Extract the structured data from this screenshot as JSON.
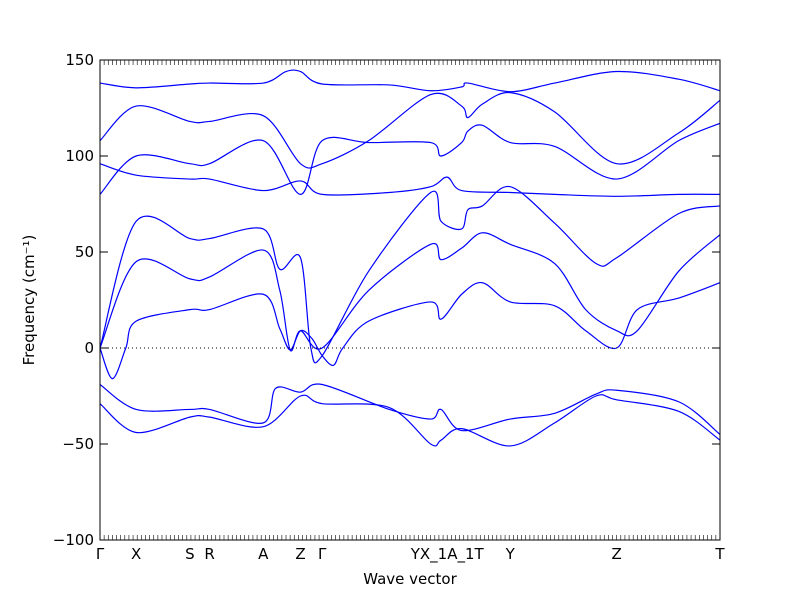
{
  "chart_data": {
    "type": "line",
    "xlabel": "Wave vector",
    "ylabel": "Frequency (cm⁻¹)",
    "ylim": [
      -100,
      150
    ],
    "yticks": [
      -100,
      -50,
      0,
      50,
      100,
      150
    ],
    "xlim": [
      0,
      3.0
    ],
    "grid": false,
    "zero_line": "dotted",
    "line_color": "#0000ff",
    "x_tick_labels": [
      {
        "label": "Γ",
        "x": 0.0
      },
      {
        "label": "X",
        "x": 0.175
      },
      {
        "label": "S",
        "x": 0.435
      },
      {
        "label": "R",
        "x": 0.53
      },
      {
        "label": "A",
        "x": 0.79
      },
      {
        "label": "Z",
        "x": 0.97
      },
      {
        "label": "Γ",
        "x": 1.075
      },
      {
        "label": "YX_1A_1T",
        "x": 1.68
      },
      {
        "label": "Y",
        "x": 1.985
      },
      {
        "label": "Z",
        "x": 2.5
      },
      {
        "label": "T",
        "x": 3.0
      }
    ],
    "series": [
      {
        "values": [
          [
            0,
            138
          ],
          [
            0.175,
            135.5
          ],
          [
            0.435,
            137.5
          ],
          [
            0.53,
            138
          ],
          [
            0.79,
            138
          ],
          [
            0.9,
            144
          ],
          [
            0.97,
            144
          ],
          [
            1.075,
            137.5
          ],
          [
            1.4,
            137
          ],
          [
            1.6,
            134
          ],
          [
            1.75,
            136
          ],
          [
            1.78,
            138
          ],
          [
            1.985,
            133.5
          ],
          [
            2.2,
            138
          ],
          [
            2.5,
            144
          ],
          [
            2.8,
            140
          ],
          [
            3.0,
            134
          ]
        ]
      },
      {
        "values": [
          [
            0,
            108
          ],
          [
            0.175,
            126
          ],
          [
            0.435,
            118
          ],
          [
            0.53,
            118
          ],
          [
            0.79,
            121
          ],
          [
            0.97,
            96
          ],
          [
            1.075,
            96
          ],
          [
            1.3,
            108
          ],
          [
            1.6,
            132
          ],
          [
            1.75,
            126
          ],
          [
            1.78,
            120
          ],
          [
            1.85,
            127
          ],
          [
            1.985,
            133
          ],
          [
            2.2,
            123
          ],
          [
            2.5,
            96
          ],
          [
            2.8,
            112
          ],
          [
            3.0,
            129
          ]
        ]
      },
      {
        "values": [
          [
            0,
            80
          ],
          [
            0.175,
            100
          ],
          [
            0.435,
            96
          ],
          [
            0.53,
            96
          ],
          [
            0.79,
            108
          ],
          [
            0.97,
            80
          ],
          [
            1.075,
            108
          ],
          [
            1.3,
            107
          ],
          [
            1.6,
            107
          ],
          [
            1.65,
            100
          ],
          [
            1.75,
            107
          ],
          [
            1.78,
            113
          ],
          [
            1.85,
            116
          ],
          [
            1.985,
            107
          ],
          [
            2.2,
            105
          ],
          [
            2.5,
            88
          ],
          [
            2.8,
            108
          ],
          [
            3.0,
            117
          ]
        ]
      },
      {
        "values": [
          [
            0,
            96
          ],
          [
            0.175,
            90
          ],
          [
            0.435,
            88
          ],
          [
            0.53,
            88
          ],
          [
            0.79,
            82
          ],
          [
            0.97,
            87
          ],
          [
            1.075,
            80
          ],
          [
            1.4,
            81
          ],
          [
            1.6,
            84
          ],
          [
            1.68,
            89
          ],
          [
            1.75,
            82
          ],
          [
            1.985,
            81
          ],
          [
            2.2,
            80
          ],
          [
            2.5,
            79
          ],
          [
            2.8,
            80
          ],
          [
            3.0,
            80
          ]
        ]
      },
      {
        "values": [
          [
            0,
            0
          ],
          [
            0.175,
            66
          ],
          [
            0.435,
            57
          ],
          [
            0.53,
            57
          ],
          [
            0.79,
            62
          ],
          [
            0.87,
            41
          ],
          [
            0.97,
            47
          ],
          [
            1.02,
            0
          ],
          [
            1.075,
            -4
          ],
          [
            1.3,
            40
          ],
          [
            1.6,
            81
          ],
          [
            1.65,
            66
          ],
          [
            1.75,
            62
          ],
          [
            1.78,
            72
          ],
          [
            1.85,
            74
          ],
          [
            1.985,
            84
          ],
          [
            2.2,
            65
          ],
          [
            2.4,
            44
          ],
          [
            2.5,
            47
          ],
          [
            2.8,
            70
          ],
          [
            3.0,
            74
          ]
        ]
      },
      {
        "values": [
          [
            0,
            0
          ],
          [
            0.175,
            45
          ],
          [
            0.435,
            36
          ],
          [
            0.53,
            37
          ],
          [
            0.79,
            51
          ],
          [
            0.87,
            30
          ],
          [
            0.92,
            -1
          ],
          [
            0.97,
            9
          ],
          [
            1.075,
            0
          ],
          [
            1.3,
            30
          ],
          [
            1.6,
            54
          ],
          [
            1.65,
            46
          ],
          [
            1.75,
            52
          ],
          [
            1.85,
            60
          ],
          [
            1.985,
            54
          ],
          [
            2.2,
            44
          ],
          [
            2.35,
            20
          ],
          [
            2.5,
            9
          ],
          [
            2.6,
            9
          ],
          [
            2.8,
            40
          ],
          [
            3.0,
            59
          ]
        ]
      },
      {
        "values": [
          [
            0,
            0
          ],
          [
            0.06,
            -16
          ],
          [
            0.125,
            0
          ],
          [
            0.175,
            14
          ],
          [
            0.435,
            20
          ],
          [
            0.53,
            20
          ],
          [
            0.79,
            28
          ],
          [
            0.87,
            10
          ],
          [
            0.92,
            -1
          ],
          [
            0.97,
            9
          ],
          [
            1.025,
            5
          ],
          [
            1.075,
            -4
          ],
          [
            1.13,
            -9
          ],
          [
            1.175,
            0
          ],
          [
            1.3,
            14
          ],
          [
            1.6,
            24
          ],
          [
            1.65,
            15
          ],
          [
            1.75,
            28
          ],
          [
            1.85,
            34
          ],
          [
            1.985,
            24
          ],
          [
            2.2,
            22
          ],
          [
            2.35,
            9
          ],
          [
            2.5,
            0
          ],
          [
            2.6,
            20
          ],
          [
            2.8,
            26
          ],
          [
            3.0,
            34
          ]
        ]
      },
      {
        "values": [
          [
            0,
            -19
          ],
          [
            0.175,
            -32
          ],
          [
            0.435,
            -32
          ],
          [
            0.53,
            -32
          ],
          [
            0.79,
            -39
          ],
          [
            0.85,
            -21
          ],
          [
            0.97,
            -23
          ],
          [
            1.075,
            -19
          ],
          [
            1.4,
            -32
          ],
          [
            1.6,
            -37
          ],
          [
            1.65,
            -32
          ],
          [
            1.75,
            -43
          ],
          [
            1.985,
            -37
          ],
          [
            2.2,
            -34
          ],
          [
            2.4,
            -24
          ],
          [
            2.5,
            -22
          ],
          [
            2.8,
            -28
          ],
          [
            3.0,
            -45
          ]
        ]
      },
      {
        "values": [
          [
            0,
            -29
          ],
          [
            0.175,
            -44
          ],
          [
            0.435,
            -36
          ],
          [
            0.53,
            -36
          ],
          [
            0.79,
            -41
          ],
          [
            0.97,
            -25
          ],
          [
            1.075,
            -29
          ],
          [
            1.4,
            -31
          ],
          [
            1.6,
            -50
          ],
          [
            1.65,
            -48
          ],
          [
            1.75,
            -42
          ],
          [
            1.985,
            -51
          ],
          [
            2.2,
            -39
          ],
          [
            2.4,
            -25
          ],
          [
            2.5,
            -27
          ],
          [
            2.8,
            -33
          ],
          [
            3.0,
            -48
          ]
        ]
      }
    ]
  }
}
